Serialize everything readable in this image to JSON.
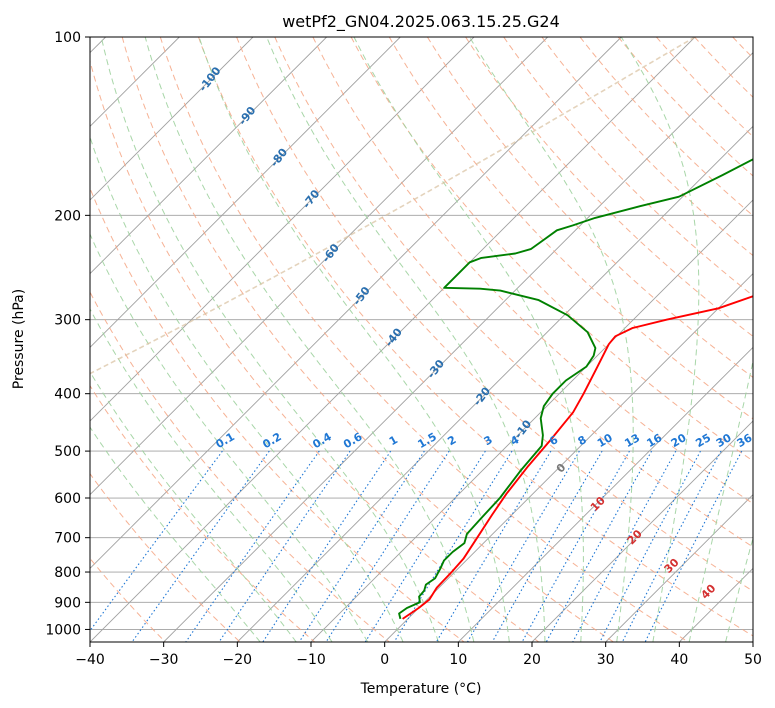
{
  "chart_data": {
    "type": "line",
    "title": "wetPf2_GN04.2025.063.15.25.G24",
    "xlabel": "Temperature (°C)",
    "ylabel": "Pressure (hPa)",
    "xlim": [
      -40,
      50
    ],
    "ylim": [
      1050,
      100
    ],
    "y_scale": "log",
    "x_ticks": [
      "−40",
      "−30",
      "−20",
      "−10",
      "0",
      "10",
      "20",
      "30",
      "40",
      "50"
    ],
    "x_tick_values": [
      -40,
      -30,
      -20,
      -10,
      0,
      10,
      20,
      30,
      40,
      50
    ],
    "y_ticks": [
      "100",
      "200",
      "300",
      "400",
      "500",
      "600",
      "700",
      "800",
      "900",
      "1000"
    ],
    "y_tick_values": [
      100,
      200,
      300,
      400,
      500,
      600,
      700,
      800,
      900,
      1000
    ],
    "grid": true,
    "series": [
      {
        "color": "#ff0000",
        "points": [
          [
            -0.7,
            960
          ],
          [
            0.0,
            920
          ],
          [
            0.3,
            890
          ],
          [
            -0.3,
            850
          ],
          [
            -0.4,
            800
          ],
          [
            -0.6,
            760
          ],
          [
            -1.6,
            700
          ],
          [
            -2.7,
            640
          ],
          [
            -3.6,
            590
          ],
          [
            -4.4,
            530
          ],
          [
            -4.9,
            480
          ],
          [
            -5.6,
            430
          ],
          [
            -6.7,
            400
          ],
          [
            -8.5,
            360
          ],
          [
            -10.0,
            330
          ],
          [
            -10.2,
            320
          ],
          [
            -9.0,
            310
          ],
          [
            -5.5,
            300
          ],
          [
            0.0,
            287
          ],
          [
            6.0,
            262
          ],
          [
            10.5,
            237
          ],
          [
            15.5,
            210
          ],
          [
            20.0,
            188
          ],
          [
            24.0,
            168
          ],
          [
            27.5,
            150
          ],
          [
            29.6,
            137
          ],
          [
            31.5,
            127
          ],
          [
            34.5,
            116
          ],
          [
            37.5,
            107
          ],
          [
            39.3,
            100
          ]
        ]
      },
      {
        "color": "#008000",
        "points": [
          [
            -1.0,
            960
          ],
          [
            -1.9,
            940
          ],
          [
            -1.6,
            920
          ],
          [
            -0.6,
            900
          ],
          [
            -1.5,
            880
          ],
          [
            -1.6,
            860
          ],
          [
            -2.2,
            840
          ],
          [
            -1.8,
            820
          ],
          [
            -2.4,
            790
          ],
          [
            -3.0,
            765
          ],
          [
            -3.0,
            740
          ],
          [
            -2.6,
            715
          ],
          [
            -3.5,
            690
          ],
          [
            -3.7,
            650
          ],
          [
            -3.9,
            600
          ],
          [
            -4.8,
            540
          ],
          [
            -5.3,
            490
          ],
          [
            -6.6,
            470
          ],
          [
            -9.2,
            440
          ],
          [
            -10.4,
            420
          ],
          [
            -10.9,
            400
          ],
          [
            -10.9,
            380
          ],
          [
            -10.0,
            360
          ],
          [
            -10.5,
            345
          ],
          [
            -11.3,
            335
          ],
          [
            -14.5,
            315
          ],
          [
            -19.5,
            295
          ],
          [
            -25.5,
            278
          ],
          [
            -32.0,
            268
          ],
          [
            -35.0,
            266
          ],
          [
            -40.0,
            265
          ],
          [
            -40.0,
            240
          ],
          [
            -39.0,
            236
          ],
          [
            -35.0,
            232
          ],
          [
            -33.5,
            228
          ],
          [
            -33.0,
            220
          ],
          [
            -32.5,
            212
          ],
          [
            -31.0,
            208
          ],
          [
            -29.0,
            202
          ],
          [
            -24.5,
            193
          ],
          [
            -20.5,
            186
          ],
          [
            -17.5,
            171
          ],
          [
            -14.5,
            156
          ],
          [
            -11.5,
            142
          ],
          [
            -8.5,
            128
          ],
          [
            -6.5,
            116
          ],
          [
            -4.5,
            106
          ],
          [
            -0.5,
            100
          ]
        ]
      }
    ],
    "dry_adiabat_labels": [
      "-100",
      "-90",
      "-80",
      "-70",
      "-60",
      "-50",
      "-40",
      "-30",
      "-20",
      "-10"
    ],
    "mixing_ratio_labels": [
      "0.1",
      "0.2",
      "0.4",
      "0.6",
      "1",
      "1.5",
      "2",
      "3",
      "4",
      "6",
      "8",
      "10",
      "13",
      "16",
      "20",
      "25",
      "30",
      "36"
    ],
    "moist_adiabat_labels": [
      "0",
      "10",
      "20",
      "30",
      "40"
    ],
    "colors": {
      "temperature": "#ff0000",
      "dewpoint": "#008000",
      "dry_adiabat": "#f4a582",
      "moist_adiabat": "#9fd19f",
      "mixing_ratio": "#1f77d4",
      "isotherm": "#a0a0a0",
      "dry_label": "#2a6faf",
      "moist_label": "#d43030",
      "moist_zero_label": "#777777",
      "wet_bulb_curve": "#d8c0a0"
    }
  }
}
